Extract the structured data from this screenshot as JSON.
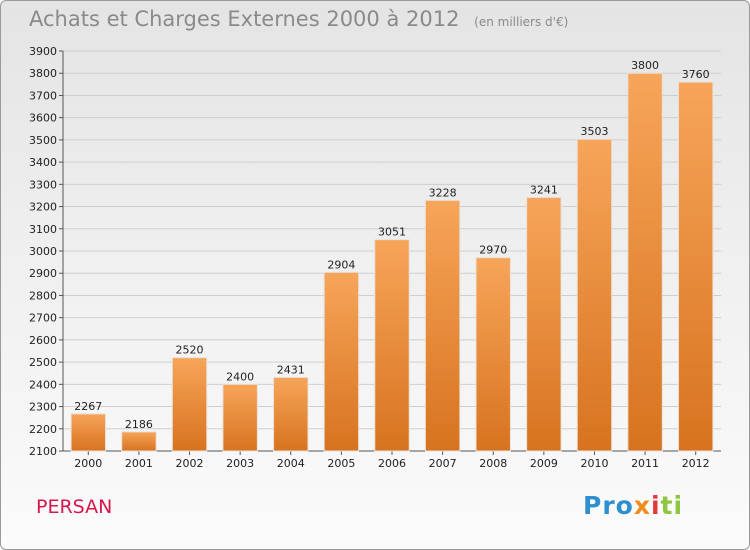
{
  "header": {
    "title": "Achats et Charges Externes 2000 à 2012",
    "subtitle": "(en milliers d'€)"
  },
  "footer": {
    "city": "PERSAN",
    "logo": [
      "Pro",
      "x",
      "i",
      "ti"
    ]
  },
  "colors": {
    "bar_top": "#f7a55a",
    "bar_bottom": "#d7731f",
    "city": "#d5174c",
    "grid": "#cfcfcf"
  },
  "chart_data": {
    "type": "bar",
    "title": "Achats et Charges Externes 2000 à 2012",
    "subtitle": "(en milliers d'€)",
    "categories": [
      "2000",
      "2001",
      "2002",
      "2003",
      "2004",
      "2005",
      "2006",
      "2007",
      "2008",
      "2009",
      "2010",
      "2011",
      "2012"
    ],
    "values": [
      2267,
      2186,
      2520,
      2400,
      2431,
      2904,
      3051,
      3228,
      2970,
      3241,
      3503,
      3800,
      3760
    ],
    "ylim": [
      2100,
      3900
    ],
    "yticks": [
      2100,
      2200,
      2300,
      2400,
      2500,
      2600,
      2700,
      2800,
      2900,
      3000,
      3100,
      3200,
      3300,
      3400,
      3500,
      3600,
      3700,
      3800,
      3900
    ],
    "grid": true,
    "legend": "none"
  }
}
